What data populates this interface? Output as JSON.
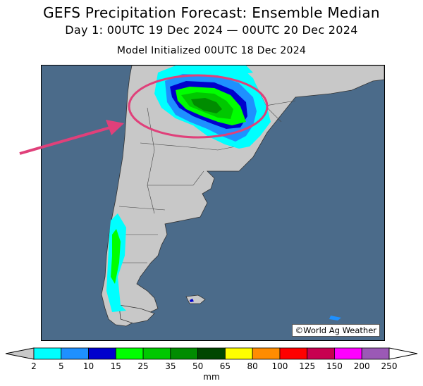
{
  "header": {
    "title": "GEFS Precipitation Forecast: Ensemble Median",
    "period": "Day 1: 00UTC 19 Dec 2024 — 00UTC 20 Dec 2024",
    "init": "Model Initialized 00UTC 18 Dec 2024"
  },
  "map": {
    "credit": "©World Ag Weather",
    "region": "southern South America",
    "ocean_color": "#4b6b8a",
    "land_color": "#c8c8c8",
    "highlight_color": "#e0407a"
  },
  "colorbar": {
    "units": "mm",
    "labels": [
      "2",
      "5",
      "10",
      "15",
      "25",
      "35",
      "50",
      "65",
      "80",
      "100",
      "125",
      "150",
      "200",
      "250"
    ],
    "colors": [
      "#00ffff",
      "#1e90ff",
      "#0000cd",
      "#00ff00",
      "#00c800",
      "#008c00",
      "#004600",
      "#ffff00",
      "#ff8c00",
      "#ff0000",
      "#c80050",
      "#ff00ff",
      "#9b59b6"
    ],
    "under_color": "#c8c8c8",
    "over_color": "#ffffff"
  }
}
